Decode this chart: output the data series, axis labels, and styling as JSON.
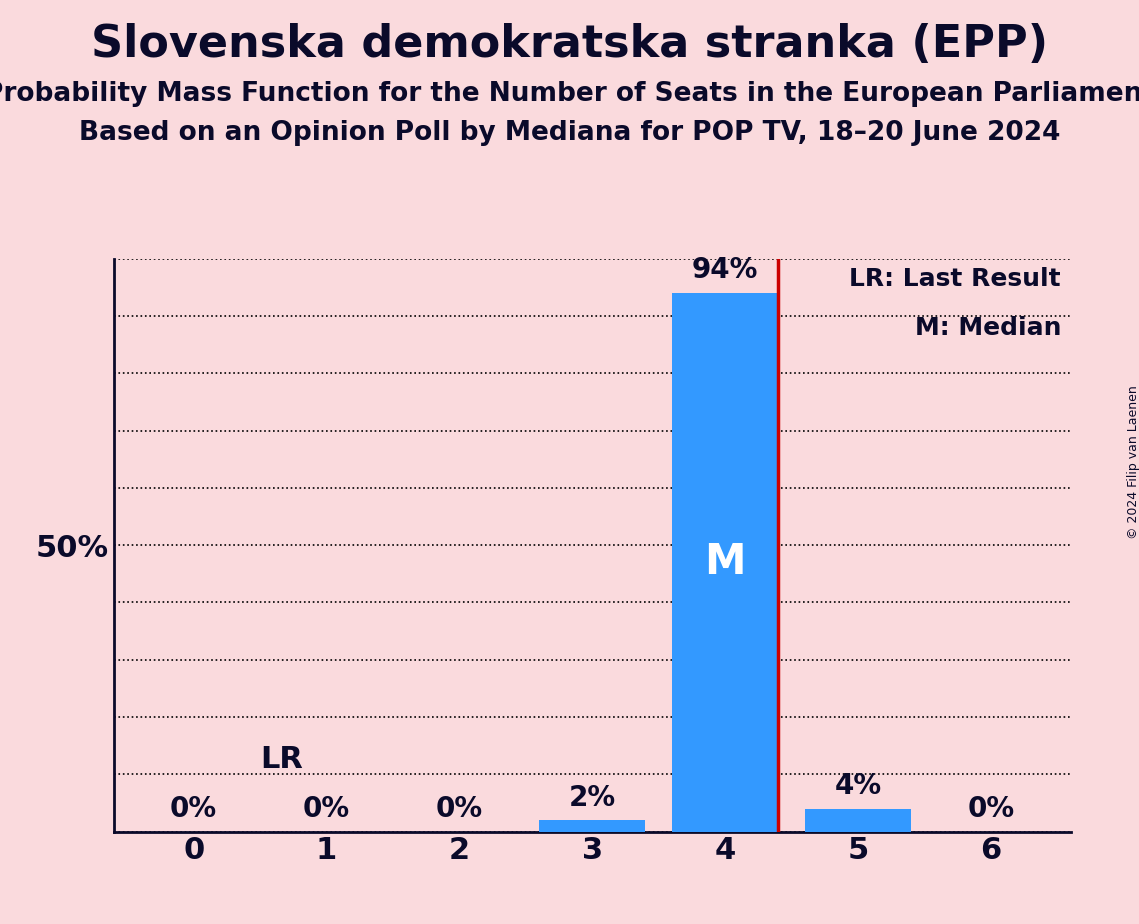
{
  "title": "Slovenska demokratska stranka (EPP)",
  "subtitle1": "Probability Mass Function for the Number of Seats in the European Parliament",
  "subtitle2": "Based on an Opinion Poll by Mediana for POP TV, 18–20 June 2024",
  "copyright": "© 2024 Filip van Laenen",
  "categories": [
    0,
    1,
    2,
    3,
    4,
    5,
    6
  ],
  "values": [
    0,
    0,
    0,
    2,
    94,
    4,
    0
  ],
  "bar_color": "#3399ff",
  "background_color": "#fadadd",
  "last_result": 4,
  "median": 4,
  "lr_label": "LR",
  "lr_line_color": "#cc0000",
  "legend_lr": "LR: Last Result",
  "legend_m": "M: Median",
  "median_label": "M",
  "median_label_color": "#ffffff",
  "title_color": "#0a0a2a",
  "grid_color": "#000000",
  "ylim": [
    0,
    100
  ],
  "yticks": [
    0,
    10,
    20,
    30,
    40,
    50,
    60,
    70,
    80,
    90,
    100
  ],
  "tick_fontsize": 22,
  "label_fontsize": 20,
  "legend_fontsize": 18,
  "title_fontsize": 32,
  "subtitle_fontsize": 19,
  "median_fontsize": 30
}
